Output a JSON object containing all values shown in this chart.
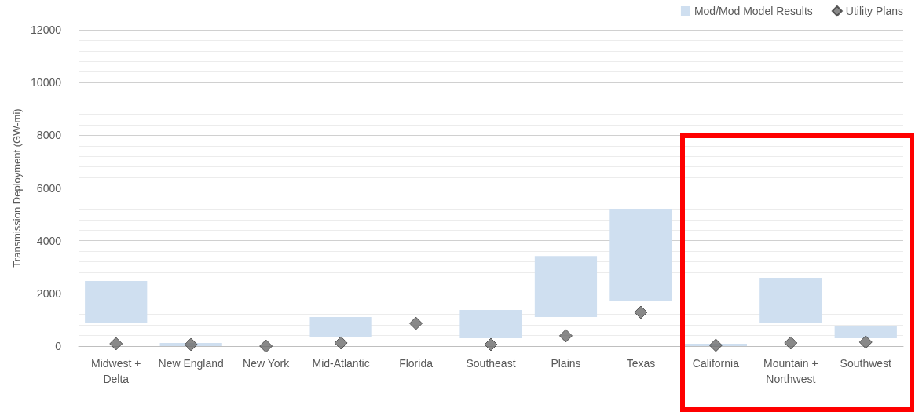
{
  "chart_data": {
    "type": "bar",
    "ylabel": "Transmission Deployment (GW-mi)",
    "categories": [
      "Midwest + Delta",
      "New England",
      "New York",
      "Mid-Atlantic",
      "Florida",
      "Southeast",
      "Plains",
      "Texas",
      "California",
      "Mountain + Northwest",
      "Southwest"
    ],
    "series": [
      {
        "name": "Mod/Mod Model Results",
        "color": "#cfdff0",
        "base": [
          870,
          0,
          null,
          360,
          null,
          300,
          1100,
          1700,
          0,
          890,
          300
        ],
        "values": [
          1600,
          120,
          null,
          740,
          null,
          1070,
          2320,
          3510,
          90,
          1700,
          470
        ]
      },
      {
        "name": "Utility Plans",
        "type": "scatter",
        "color": "#6b6b6b",
        "marker": "diamond",
        "values": [
          90,
          60,
          0,
          120,
          860,
          60,
          390,
          1280,
          30,
          120,
          150
        ]
      }
    ],
    "ylim": [
      0,
      12000
    ],
    "yticks": [
      0,
      2000,
      4000,
      6000,
      8000,
      10000,
      12000
    ],
    "grid": true,
    "legend": "top right"
  }
}
